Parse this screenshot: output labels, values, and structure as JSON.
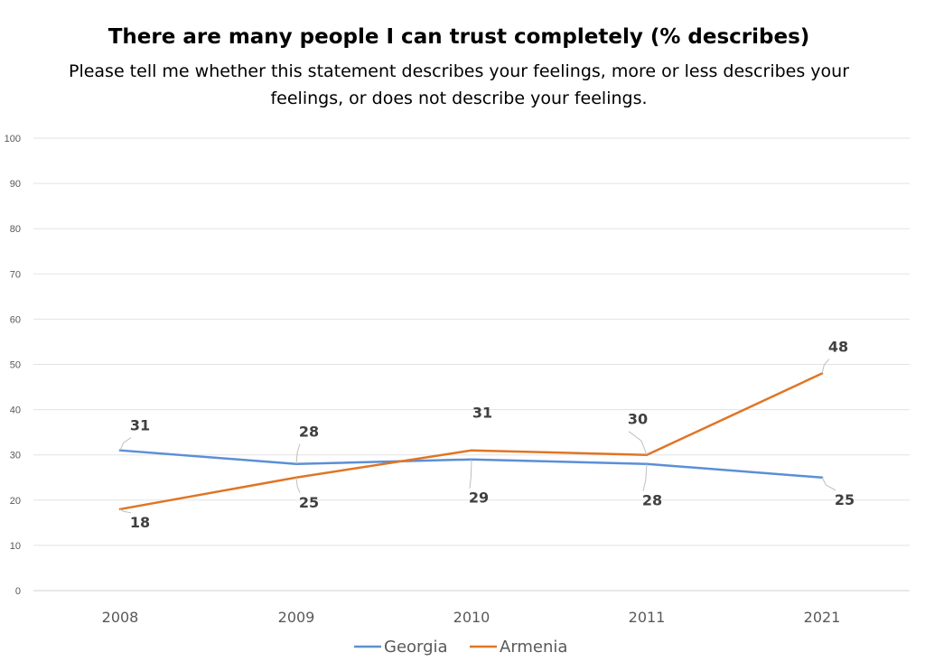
{
  "chart_data": {
    "type": "line",
    "title": "There are many people I can trust completely (% describes)",
    "subtitle": "Please tell me whether this statement describes your feelings, more or less describes your feelings, or does not describe your feelings.",
    "categories": [
      "2008",
      "2009",
      "2010",
      "2011",
      "2021"
    ],
    "ylim": [
      0,
      100
    ],
    "yticks": [
      0,
      10,
      20,
      30,
      40,
      50,
      60,
      70,
      80,
      90,
      100
    ],
    "grid": true,
    "legend_position": "bottom",
    "series": [
      {
        "name": "Georgia",
        "color": "#5B8FD6",
        "values": [
          31,
          28,
          29,
          28,
          25
        ]
      },
      {
        "name": "Armenia",
        "color": "#E07525",
        "values": [
          18,
          25,
          31,
          30,
          48
        ]
      }
    ]
  }
}
